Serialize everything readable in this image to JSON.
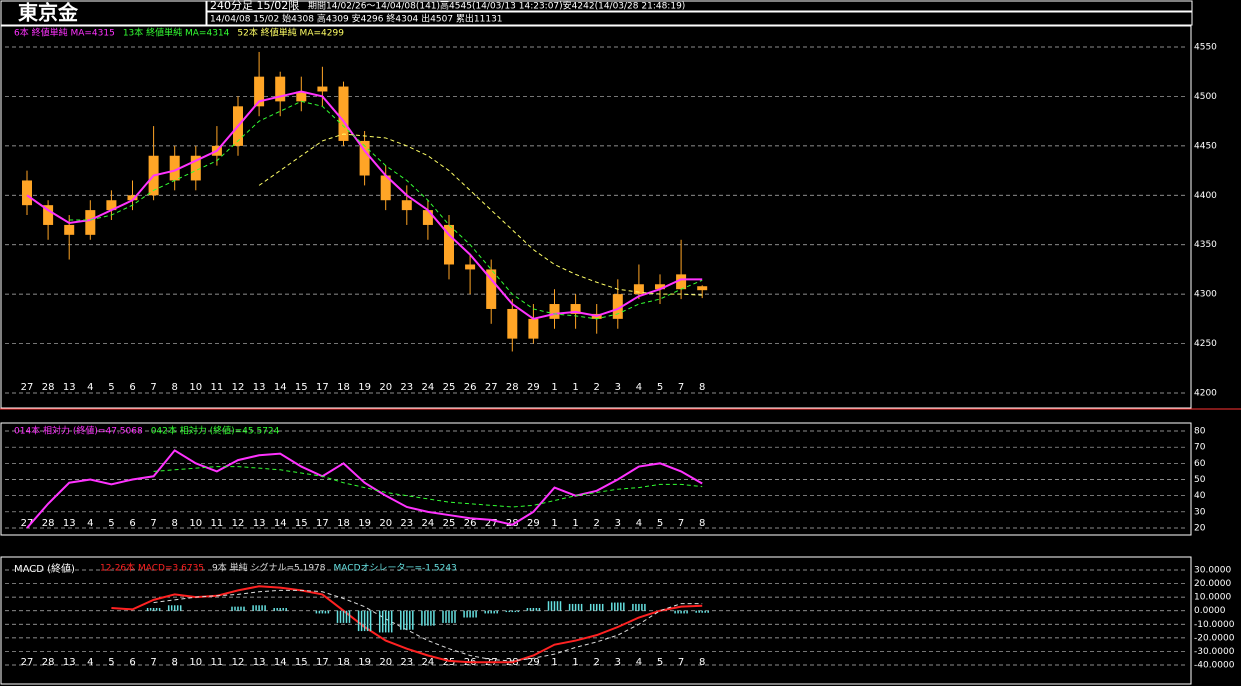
{
  "chart_data": [
    {
      "type": "candlestick",
      "title": "東京金",
      "subtitle": "240分足 15/02限",
      "info": [
        "期間14/02/26～14/04/08(141)高4545(14/03/13 14:23:07)安4242(14/03/28 21:48:19)",
        "14/04/08 15/02 始4308 高4309 安4296 終4304 出4507 累出11131"
      ],
      "categories": [
        "27",
        "28",
        "13",
        "4",
        "5",
        "6",
        "7",
        "8",
        "10",
        "11",
        "12",
        "13",
        "14",
        "15",
        "17",
        "18",
        "19",
        "20",
        "23",
        "24",
        "25",
        "26",
        "27",
        "28",
        "29",
        "1",
        "1",
        "2",
        "3",
        "4",
        "5",
        "7",
        "8"
      ],
      "open": [
        4415,
        4390,
        4370,
        4360,
        4385,
        4395,
        4400,
        4440,
        4415,
        4440,
        4450,
        4490,
        4520,
        4495,
        4505,
        4510,
        4455,
        4420,
        4395,
        4385,
        4370,
        4330,
        4325,
        4285,
        4255,
        4275,
        4290,
        4280,
        4275,
        4300,
        4310,
        4305,
        4308
      ],
      "high": [
        4425,
        4395,
        4380,
        4395,
        4405,
        4415,
        4470,
        4450,
        4450,
        4470,
        4500,
        4545,
        4525,
        4520,
        4530,
        4515,
        4465,
        4430,
        4410,
        4395,
        4380,
        4340,
        4335,
        4295,
        4290,
        4305,
        4300,
        4290,
        4315,
        4330,
        4320,
        4355,
        4309
      ],
      "low": [
        4380,
        4355,
        4335,
        4355,
        4375,
        4385,
        4395,
        4405,
        4405,
        4430,
        4440,
        4480,
        4480,
        4485,
        4490,
        4450,
        4410,
        4385,
        4370,
        4355,
        4315,
        4300,
        4270,
        4242,
        4250,
        4265,
        4265,
        4260,
        4265,
        4295,
        4290,
        4295,
        4296
      ],
      "close": [
        4390,
        4370,
        4360,
        4385,
        4395,
        4400,
        4440,
        4415,
        4440,
        4450,
        4490,
        4520,
        4495,
        4505,
        4510,
        4455,
        4420,
        4395,
        4385,
        4370,
        4330,
        4325,
        4285,
        4255,
        4275,
        4290,
        4280,
        4275,
        4300,
        4310,
        4305,
        4320,
        4304
      ],
      "color": "#ffa526",
      "series": [
        {
          "name": "6本 終値単純 MA=4315",
          "color": "#ff33ff",
          "dash": false,
          "values": [
            4400,
            4385,
            4372,
            4375,
            4385,
            4395,
            4420,
            4425,
            4435,
            4445,
            4470,
            4495,
            4500,
            4505,
            4500,
            4475,
            4445,
            4420,
            4400,
            4385,
            4360,
            4340,
            4315,
            4290,
            4275,
            4280,
            4282,
            4278,
            4285,
            4298,
            4305,
            4315,
            4315
          ]
        },
        {
          "name": "13本 終値単純 MA=4314",
          "color": "#33ff33",
          "dash": true,
          "values": [
            null,
            null,
            4375,
            4375,
            4380,
            4390,
            4405,
            4415,
            4425,
            4435,
            4455,
            4475,
            4485,
            4495,
            4490,
            4470,
            4450,
            4430,
            4415,
            4395,
            4370,
            4350,
            4325,
            4300,
            4285,
            4280,
            4278,
            4275,
            4280,
            4290,
            4295,
            4305,
            4314
          ]
        },
        {
          "name": "52本 終値単純 MA=4299",
          "color": "#ffff66",
          "dash": true,
          "values": [
            null,
            null,
            null,
            null,
            null,
            null,
            null,
            null,
            null,
            null,
            null,
            4410,
            4425,
            4440,
            4455,
            4462,
            4460,
            4458,
            4450,
            4440,
            4425,
            4405,
            4385,
            4365,
            4345,
            4330,
            4320,
            4312,
            4305,
            4302,
            4300,
            4300,
            4299
          ]
        }
      ],
      "ylim": [
        4200,
        4550
      ],
      "yticks": [
        4200,
        4250,
        4300,
        4350,
        4400,
        4450,
        4500,
        4550
      ],
      "grid": true
    },
    {
      "type": "line",
      "categories": [
        "27",
        "28",
        "13",
        "4",
        "5",
        "6",
        "7",
        "8",
        "10",
        "11",
        "12",
        "13",
        "14",
        "15",
        "17",
        "18",
        "19",
        "20",
        "23",
        "24",
        "25",
        "26",
        "27",
        "28",
        "29",
        "1",
        "1",
        "2",
        "3",
        "4",
        "5",
        "7",
        "8"
      ],
      "series": [
        {
          "name": "014本 相対力 (終値)=47.5068",
          "color": "#ff33ff",
          "dash": false,
          "values": [
            20,
            35,
            48,
            50,
            47,
            50,
            52,
            68,
            60,
            55,
            62,
            65,
            66,
            58,
            52,
            60,
            48,
            40,
            33,
            30,
            28,
            26,
            25,
            22,
            30,
            45,
            40,
            43,
            50,
            58,
            60,
            55,
            47.5
          ]
        },
        {
          "name": "042本 相対力 (終値)=45.5724",
          "color": "#33ff33",
          "dash": true,
          "values": [
            null,
            null,
            null,
            null,
            null,
            null,
            55,
            56,
            57,
            58,
            58,
            57,
            56,
            54,
            52,
            48,
            45,
            42,
            40,
            38,
            36,
            35,
            34,
            33,
            34,
            37,
            40,
            42,
            44,
            45,
            47,
            47,
            45.6
          ]
        }
      ],
      "ylim": [
        20,
        80
      ],
      "yticks": [
        20,
        30,
        40,
        50,
        60,
        70,
        80
      ],
      "grid": true
    },
    {
      "type": "combo",
      "title": "MACD (終値)",
      "categories": [
        "27",
        "28",
        "13",
        "4",
        "5",
        "6",
        "7",
        "8",
        "10",
        "11",
        "12",
        "13",
        "14",
        "15",
        "17",
        "18",
        "19",
        "20",
        "23",
        "24",
        "25",
        "26",
        "27",
        "28",
        "29",
        "1",
        "1",
        "2",
        "3",
        "4",
        "5",
        "7",
        "8"
      ],
      "series": [
        {
          "name": "12-26本 MACD=3.6735",
          "color": "#ff2222",
          "dash": false,
          "kind": "line",
          "values": [
            null,
            null,
            null,
            null,
            2,
            1,
            8,
            12,
            10,
            11,
            15,
            18,
            17,
            15,
            12,
            0,
            -12,
            -22,
            -28,
            -33,
            -37,
            -38,
            -38,
            -38,
            -33,
            -25,
            -22,
            -18,
            -12,
            -5,
            0,
            3,
            3.7
          ]
        },
        {
          "name": "9本 単純 シグナル=5.1978",
          "color": "#dddddd",
          "dash": true,
          "kind": "line",
          "values": [
            null,
            null,
            null,
            null,
            null,
            null,
            6,
            8,
            10,
            11,
            12,
            14,
            15,
            15,
            14,
            9,
            3,
            -6,
            -14,
            -22,
            -28,
            -33,
            -36,
            -37,
            -35,
            -32,
            -27,
            -23,
            -18,
            -10,
            0,
            5.2,
            5.2
          ]
        },
        {
          "name": "MACDオシレーター=-1.5243",
          "color": "#66e0e0",
          "dash": false,
          "kind": "bar",
          "values": [
            null,
            null,
            null,
            null,
            null,
            null,
            2,
            4,
            0,
            0,
            3,
            4,
            2,
            0,
            -2,
            -9,
            -15,
            -16,
            -14,
            -11,
            -9,
            -5,
            -2,
            -1,
            2,
            7,
            5,
            5,
            6,
            5,
            0,
            -2,
            -1.5
          ]
        }
      ],
      "ylim": [
        -40,
        30
      ],
      "yticks": [
        {
          "value": -40,
          "label": "-40.0000"
        },
        {
          "value": -30,
          "label": "-30.0000"
        },
        {
          "value": -20,
          "label": "-20.0000"
        },
        {
          "value": -10,
          "label": "-10.0000"
        },
        {
          "value": 0,
          "label": "0.0000"
        },
        {
          "value": 10,
          "label": "10.0000"
        },
        {
          "value": 20,
          "label": "20.0000"
        },
        {
          "value": 30,
          "label": "30.0000"
        }
      ],
      "grid": true
    }
  ]
}
